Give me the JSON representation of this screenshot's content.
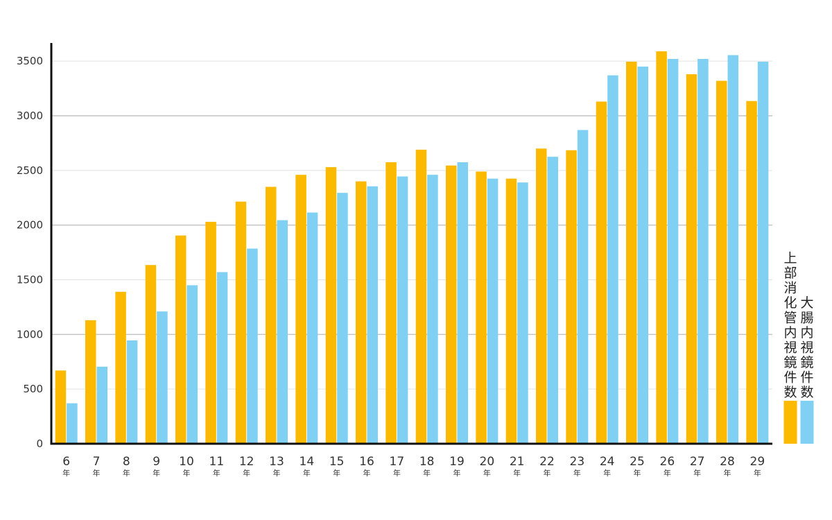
{
  "chart_data": {
    "type": "bar",
    "categories": [
      "6",
      "7",
      "8",
      "9",
      "10",
      "11",
      "12",
      "13",
      "14",
      "15",
      "16",
      "17",
      "18",
      "19",
      "20",
      "21",
      "22",
      "23",
      "24",
      "25",
      "26",
      "27",
      "28",
      "29"
    ],
    "category_suffix": "年",
    "series": [
      {
        "name": "上部消化管内視鏡件数",
        "color": "#FBBA00",
        "values": [
          670,
          1130,
          1390,
          1635,
          1905,
          2030,
          2215,
          2350,
          2460,
          2530,
          2400,
          2575,
          2690,
          2545,
          2490,
          2425,
          2700,
          2685,
          3130,
          3495,
          3590,
          3380,
          3320,
          3135
        ]
      },
      {
        "name": "大腸内視鏡件数",
        "color": "#7FD0F3",
        "values": [
          370,
          705,
          945,
          1210,
          1450,
          1570,
          1785,
          2045,
          2115,
          2295,
          2355,
          2445,
          2460,
          2575,
          2425,
          2390,
          2625,
          2870,
          3370,
          3450,
          3520,
          3520,
          3555,
          3495
        ]
      }
    ],
    "yticks": [
      0,
      500,
      1000,
      1500,
      2000,
      2500,
      3000,
      3500
    ],
    "ylim": [
      0,
      3500
    ],
    "grid": true,
    "legend_position": "right"
  }
}
